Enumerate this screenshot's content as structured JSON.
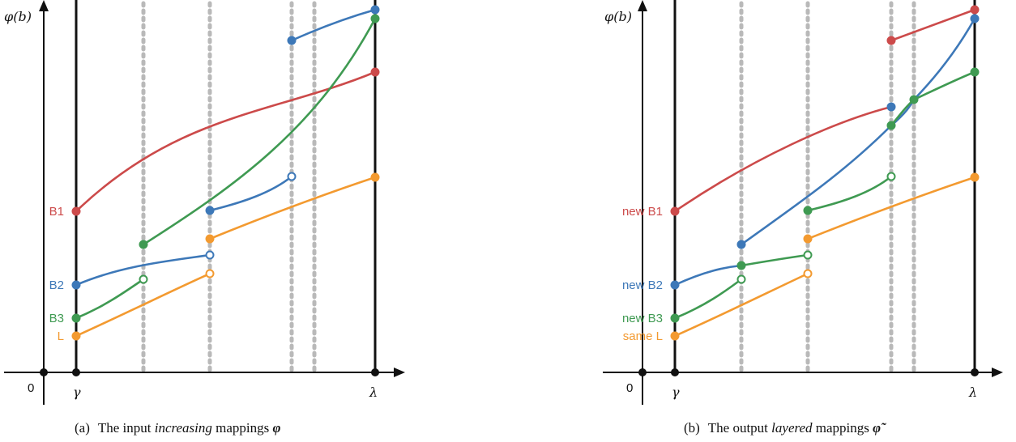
{
  "colors": {
    "red": "#cc4a4a",
    "blue": "#3d78b8",
    "green": "#3f9a52",
    "orange": "#f39a30",
    "dotted": "#b9b9b9",
    "axis": "#111111"
  },
  "panels": [
    {
      "id": "a",
      "y_axis_label": "φ(b)",
      "origin_label": "0",
      "gamma_label": "γ",
      "lambda_label": "λ",
      "series_labels": {
        "B1": "B1",
        "B2": "B2",
        "B3": "B3",
        "L": "L"
      },
      "caption": {
        "tag": "(a)",
        "prefix": "The input ",
        "emph": "increasing",
        "middle": " mappings ",
        "symbol": "φ"
      }
    },
    {
      "id": "b",
      "y_axis_label": "φ(b)",
      "origin_label": "0",
      "gamma_label": "γ",
      "lambda_label": "λ",
      "series_labels": {
        "B1": "new B1",
        "B2": "new B2",
        "B3": "new B3",
        "L": "same L"
      },
      "caption": {
        "tag": "(b)",
        "prefix": "The output ",
        "emph": "layered",
        "middle": " mappings ",
        "symbol": "φ̃"
      }
    }
  ]
}
